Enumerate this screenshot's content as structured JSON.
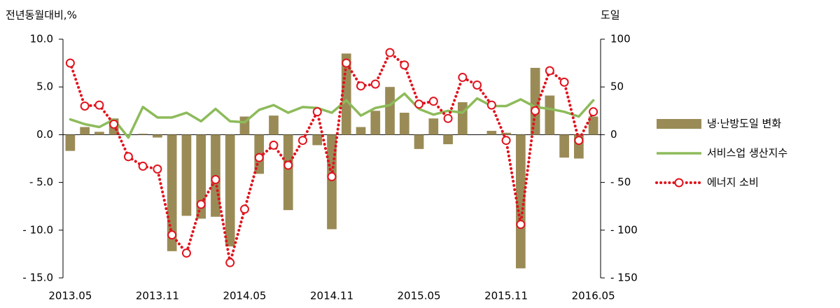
{
  "chart_data": {
    "type": "bar-line",
    "y_label": "전년동월대비,%",
    "y2_label": "도일",
    "categories": [
      "2013.05",
      null,
      null,
      null,
      null,
      null,
      "2013.11",
      null,
      null,
      null,
      null,
      null,
      "2014.05",
      null,
      null,
      null,
      null,
      null,
      "2014.11",
      null,
      null,
      null,
      null,
      null,
      "2015.05",
      null,
      null,
      null,
      null,
      null,
      "2015.11",
      null,
      null,
      null,
      null,
      null,
      "2016.05"
    ],
    "series": [
      {
        "name": "냉·난방도일 변화",
        "type": "bar",
        "axis": "y2",
        "color": "#9a8b56",
        "values": [
          -17,
          8,
          3,
          17,
          0,
          1,
          -3,
          -122,
          -85,
          -88,
          -86,
          -117,
          19,
          -41,
          20,
          -79,
          0,
          -11,
          -99,
          85,
          8,
          25,
          50,
          23,
          -15,
          17,
          -10,
          34,
          0,
          4,
          2,
          -140,
          70,
          41,
          -24,
          -25,
          19
        ]
      },
      {
        "name": "서비스업 생산지수",
        "type": "line",
        "color": "#8dbb5a",
        "values": [
          1.6,
          1.1,
          0.8,
          1.6,
          -0.3,
          2.9,
          1.8,
          1.8,
          2.3,
          1.4,
          2.7,
          1.4,
          1.3,
          2.6,
          3.1,
          2.3,
          2.9,
          2.8,
          2.3,
          3.6,
          2.0,
          2.8,
          3.1,
          4.3,
          2.7,
          2.1,
          2.5,
          2.3,
          3.8,
          3.0,
          3.0,
          3.7,
          2.9,
          2.7,
          2.4,
          1.9,
          3.6
        ]
      },
      {
        "name": "에너지 소비",
        "type": "dotted-line",
        "color": "#e0141e",
        "values": [
          7.5,
          3.0,
          3.1,
          1.1,
          -2.3,
          -3.3,
          -3.6,
          -10.5,
          -12.4,
          -7.3,
          -4.7,
          -13.4,
          -7.8,
          -2.4,
          -1.1,
          -3.2,
          -0.6,
          2.4,
          -4.4,
          7.5,
          5.1,
          5.3,
          8.6,
          7.3,
          3.2,
          3.5,
          1.7,
          6.0,
          5.2,
          3.1,
          -0.6,
          -9.4,
          2.5,
          6.7,
          5.5,
          -0.6,
          2.4
        ]
      }
    ],
    "ylim": [
      -15,
      10
    ],
    "yticks": [
      {
        "value": 10,
        "label": "10.0"
      },
      {
        "value": 5,
        "label": "5.0"
      },
      {
        "value": 0,
        "label": "0.0"
      },
      {
        "value": -5,
        "label": "- 5.0"
      },
      {
        "value": -10,
        "label": "- 10.0"
      },
      {
        "value": -15,
        "label": "- 15.0"
      }
    ],
    "y2lim": [
      -150,
      100
    ],
    "y2ticks": [
      100,
      50,
      0,
      {
        "value": -50,
        "label": "- 50"
      },
      {
        "value": -100,
        "label": "- 100"
      },
      {
        "value": -150,
        "label": "- 150"
      }
    ],
    "legend": "right"
  }
}
